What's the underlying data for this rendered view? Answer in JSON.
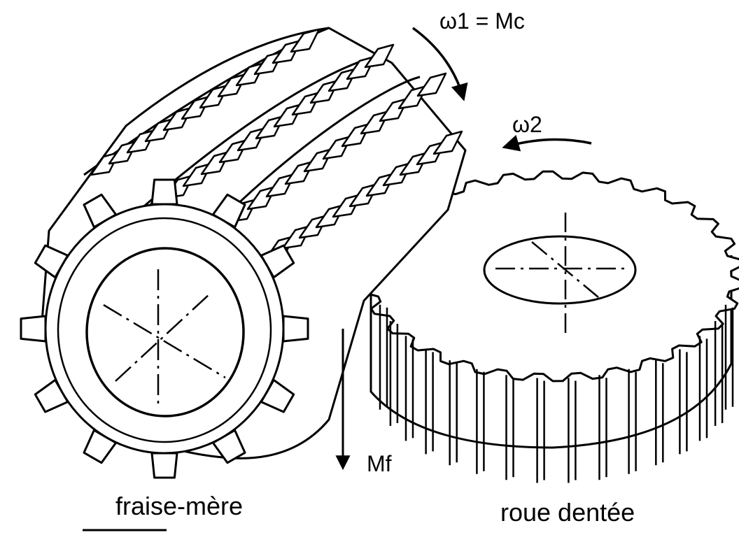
{
  "labels": {
    "omega1": "ω1 = Mc",
    "omega2": "ω2",
    "mf": "Mf",
    "hob": "fraise-mère",
    "gear": "roue dentée"
  },
  "colors": {
    "ink": "#000000",
    "paper": "#ffffff"
  },
  "parts": {
    "hob_gashes": 3,
    "hob_front_teeth": 12,
    "gear_teeth": 30,
    "gear_front_grooves": 16
  }
}
